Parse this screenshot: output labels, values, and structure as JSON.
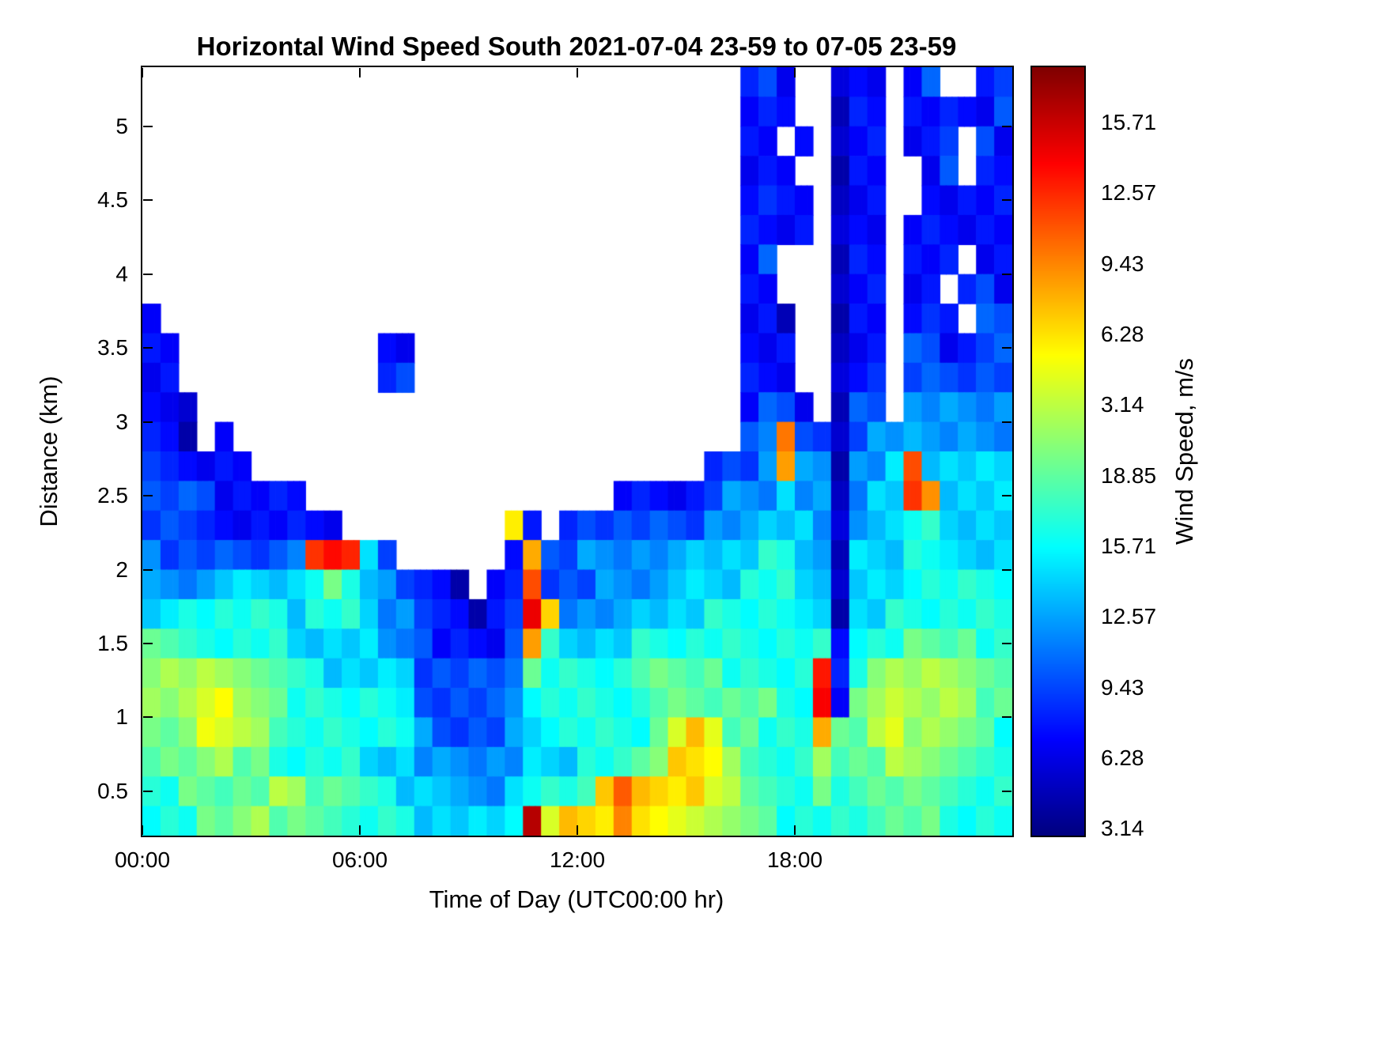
{
  "chart_data": {
    "type": "heatmap",
    "title": "Horizontal Wind Speed South 2021-07-04 23-59 to 07-05 23-59",
    "xlabel": "Time of Day (UTC00:00 hr)",
    "ylabel": "Distance (km)",
    "colorbar_label": "Wind Speed, m/s",
    "colormap": "jet",
    "legend_position": "right-colorbar",
    "grid_lines": "off",
    "x_tick_labels": [
      "00:00",
      "06:00",
      "12:00",
      "18:00"
    ],
    "x_tick_hours": [
      0,
      6,
      12,
      18
    ],
    "x_range_hours": [
      0,
      24
    ],
    "y_tick_labels": [
      "5",
      "4.5",
      "4",
      "3.5",
      "3",
      "2.5",
      "2",
      "1.5",
      "1",
      "0.5"
    ],
    "y_tick_values": [
      5,
      4.5,
      4,
      3.5,
      3,
      2.5,
      2,
      1.5,
      1,
      0.5
    ],
    "y_range_km": [
      0.2,
      5.4
    ],
    "colorbar_tick_labels": [
      "15.71",
      "12.57",
      "9.43",
      "6.28",
      "3.14",
      "18.85",
      "15.71",
      "12.57",
      "9.43",
      "6.28",
      "3.14"
    ],
    "value_range_mps": [
      0,
      22
    ],
    "grid": {
      "time_start_hr": 0,
      "time_step_hr": 0.5,
      "cols": 48,
      "alt_top_km": 5.4,
      "alt_step_km": 0.2,
      "rows": 26,
      "no_data_char": ".",
      "encoding": "each char is one cell; wind_speed_mps = parseInt(char,16)/15*22; '.' = no data (white)",
      "rows_top_to_bottom": [
        ".................................232..122.23..23",
        ".................................222..122.222223",
        ".................................22.2.122.223.32",
        ".................................222..122..23.22",
        ".................................2322.122..22222",
        ".................................2222.122.222222",
        ".................................23...122.222.22",
        ".................................22...122.22.232",
        "2................................221..122.232.33",
        "22...........22..................222..122.332233",
        "22...........23..................222..123.333333",
        "221..............................2332.133.444444",
        "221.2............................34b331344544444",
        "322222.........................2334b441445c55555",
        "333322222.................2222234445441455cb5555",
        "33322222222.........a2.2333333344455541455665555",
        "433333334cdd53......2b33444444555566541555665555",
        "444455555676543221.22c33344445555666551555666666",
        "556666665666544322123da4444555566666551556666666",
        "776666665555544322223b65555666666666662666777766",
        "8888887766555553333347666667777766666d2688888877",
        "8889988766666653333346666666777777766d2789888877",
        "778998876666666433334566666679a977666b7789888776",
        "77788776666655544444455566678aa98766687778887766",
        "6677777887776655544456667acaaaa98776676777777666",
        "666778877776666555556e9aaaba99988776666677776666"
      ]
    }
  }
}
